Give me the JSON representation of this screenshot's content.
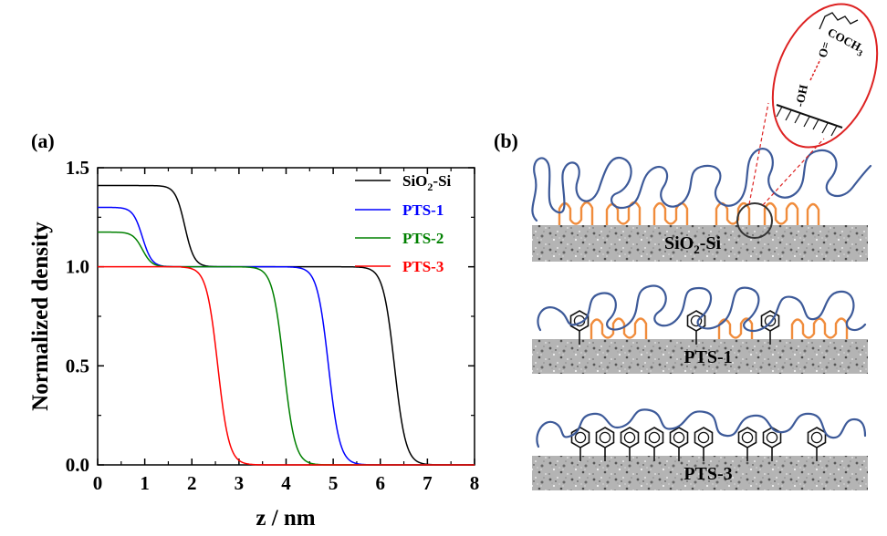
{
  "figure": {
    "panel_a": "(a)",
    "panel_b": "(b)"
  },
  "chart_data": {
    "type": "line",
    "title": "",
    "xlabel": "z / nm",
    "ylabel": "Normalized density",
    "xlim": [
      0,
      8
    ],
    "ylim": [
      0,
      1.5
    ],
    "xticks": [
      0,
      1,
      2,
      3,
      4,
      5,
      6,
      7,
      8
    ],
    "xtick_labels": [
      "0",
      "1",
      "2",
      "3",
      "4",
      "5",
      "6",
      "7",
      "8"
    ],
    "yticks": [
      0,
      0.5,
      1.0,
      1.5
    ],
    "ytick_labels": [
      "0.0",
      "0.5",
      "1.0",
      "1.5"
    ],
    "grid": false,
    "legend_position": "top-right",
    "series": [
      {
        "name_parts": [
          "SiO",
          "2",
          "-Si"
        ],
        "color": "#000000",
        "step1": {
          "from": 1.41,
          "to": 1.0,
          "center": 1.85,
          "width": 0.1
        },
        "step2": {
          "from": 1.0,
          "to": 0.0,
          "center": 6.3,
          "width": 0.12
        }
      },
      {
        "name": "PTS-1",
        "color": "#0000ff",
        "step1": {
          "from": 1.3,
          "to": 1.0,
          "center": 0.95,
          "width": 0.1
        },
        "step2": {
          "from": 1.0,
          "to": 0.0,
          "center": 4.9,
          "width": 0.12
        }
      },
      {
        "name": "PTS-2",
        "color": "#008000",
        "step1": {
          "from": 1.175,
          "to": 1.0,
          "center": 0.95,
          "width": 0.1
        },
        "step2": {
          "from": 1.0,
          "to": 0.0,
          "center": 3.95,
          "width": 0.12
        }
      },
      {
        "name": "PTS-3",
        "color": "#ff0000",
        "step1": {
          "from": 1.0,
          "to": 1.0,
          "center": 1.0,
          "width": 0.1
        },
        "step2": {
          "from": 1.0,
          "to": 0.0,
          "center": 2.55,
          "width": 0.12
        }
      }
    ]
  },
  "schematic": {
    "substrates": [
      {
        "label_parts": [
          "SiO",
          "2",
          "-Si"
        ]
      },
      {
        "label": "PTS-1"
      },
      {
        "label": "PTS-3"
      }
    ],
    "inset": {
      "hydroxyl": "-OH",
      "carbonyl": "O=",
      "acetate_prefix": "COCH",
      "acetate_sub": "3"
    },
    "colors": {
      "polymer_chain": "#3d5a99",
      "alkyl_chain": "#f08c3c",
      "highlight": "#dd2222"
    }
  }
}
